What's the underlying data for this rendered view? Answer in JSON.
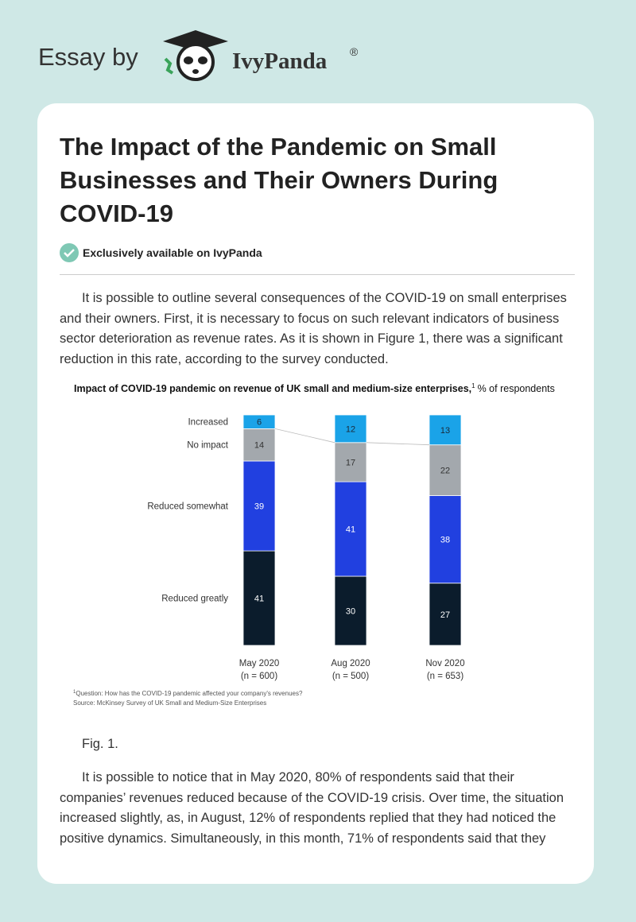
{
  "header": {
    "prefix": "Essay by",
    "brand": "IvyPanda",
    "registered": "®"
  },
  "article": {
    "title": "The Impact of the Pandemic on Small Businesses and Their Owners During COVID-19",
    "badge": "Exclusively available on IvyPanda",
    "paragraphs": [
      "It is possible to outline several consequences of the COVID-19 on small enterprises and their owners. First, it is necessary to focus on such relevant indicators of business sector deterioration as revenue rates. As it is shown in Figure 1, there was a significant reduction in this rate, according to the survey conducted.",
      "It is possible to notice that in May 2020, 80% of respondents said that their companies’ revenues reduced because of the COVID-19 crisis. Over time, the situation increased slightly, as, in August, 12% of respondents replied that they had noticed the positive dynamics. Simultaneously, in this month, 71% of respondents said that they"
    ],
    "caption": "Fig. 1."
  },
  "chart_data": {
    "type": "stacked_bar",
    "title": "Impact of COVID-19 pandemic on revenue of UK small and medium-size enterprises,",
    "footnote_mark": "1",
    "unit": "% of respondents",
    "categories": [
      "May 2020",
      "Aug 2020",
      "Nov 2020"
    ],
    "sample_sizes": [
      "(n = 600)",
      "(n = 500)",
      "(n = 653)"
    ],
    "series": [
      {
        "name": "Reduced greatly",
        "color": "#0b1c2c",
        "label_color": "#ffffff",
        "values": [
          41,
          30,
          27
        ]
      },
      {
        "name": "Reduced somewhat",
        "color": "#2140e0",
        "label_color": "#ffffff",
        "values": [
          39,
          41,
          38
        ]
      },
      {
        "name": "No impact",
        "color": "#a3a8ad",
        "label_color": "#333333",
        "values": [
          14,
          17,
          22
        ]
      },
      {
        "name": "Increased",
        "color": "#1aa3e8",
        "label_color": "#1a2a3a",
        "values": [
          6,
          12,
          13
        ]
      }
    ],
    "ylim": [
      0,
      100
    ],
    "footnote": "Question: How has the COVID-19 pandemic affected your company's revenues?",
    "source": "Source: McKinsey Survey of UK Small and Medium-Size Enterprises"
  }
}
